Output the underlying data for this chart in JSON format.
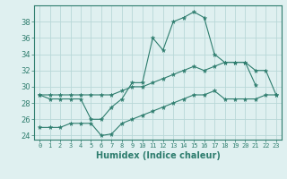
{
  "xlabel": "Humidex (Indice chaleur)",
  "x": [
    0,
    1,
    2,
    3,
    4,
    5,
    6,
    7,
    8,
    9,
    10,
    11,
    12,
    13,
    14,
    15,
    16,
    17,
    18,
    19,
    20,
    21,
    22,
    23
  ],
  "y_main": [
    29,
    28.5,
    28.5,
    28.5,
    28.5,
    26,
    26,
    27.5,
    28.5,
    30.5,
    30.5,
    36,
    34.5,
    38,
    38.5,
    39.2,
    38.5,
    34,
    33,
    33,
    33,
    30.2,
    null,
    null
  ],
  "y_upper": [
    29,
    29,
    29,
    29,
    29,
    29,
    29,
    29,
    29.5,
    30,
    30,
    30.5,
    31,
    31.5,
    32,
    32.5,
    32,
    32.5,
    33,
    33,
    33,
    32,
    32,
    29
  ],
  "y_lower": [
    25,
    25,
    25,
    25.5,
    25.5,
    25.5,
    24,
    24.2,
    25.5,
    26,
    26.5,
    27,
    27.5,
    28,
    28.5,
    29,
    29,
    29.5,
    28.5,
    28.5,
    28.5,
    28.5,
    29,
    29
  ],
  "color": "#2e7d6e",
  "bg_color": "#dff0f0",
  "grid_color": "#b8d8d8",
  "ylim": [
    23.5,
    40
  ],
  "yticks": [
    24,
    26,
    28,
    30,
    32,
    34,
    36,
    38
  ],
  "xlim": [
    -0.5,
    23.5
  ]
}
